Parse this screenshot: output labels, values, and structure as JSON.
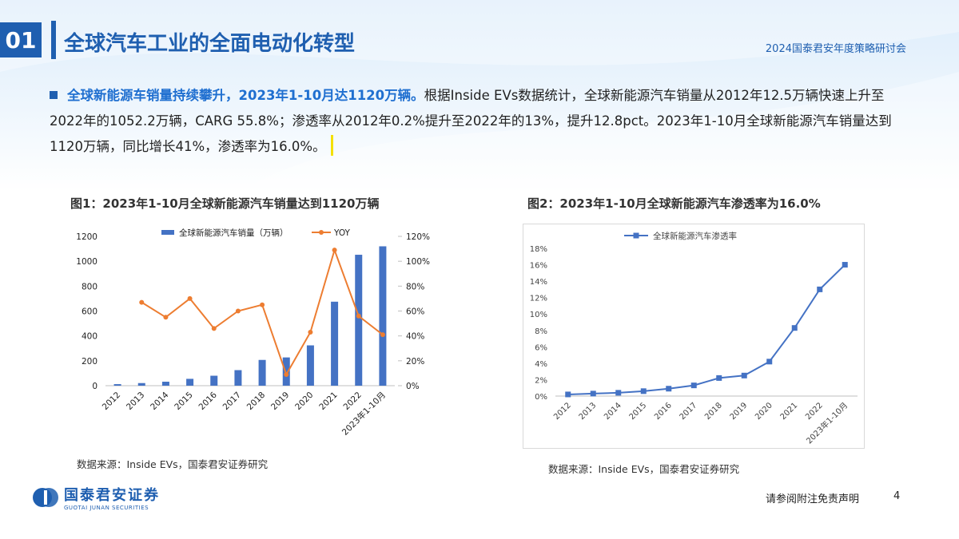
{
  "header": {
    "section_number": "01",
    "title": "全球汽车工业的全面电动化转型",
    "event": "2024国泰君安年度策略研讨会"
  },
  "body": {
    "highlight": "全球新能源车销量持续攀升，2023年1-10月达1120万辆。",
    "text": "根据Inside EVs数据统计，全球新能源汽车销量从2012年12.5万辆快速上升至2022年的1052.2万辆，CARG 55.8%；渗透率从2012年0.2%提升至2022年的13%，提升12.8pct。2023年1-10月全球新能源汽车销量达到1120万辆，同比增长41%，渗透率为16.0%。"
  },
  "figure1": {
    "title": "图1：2023年1-10月全球新能源汽车销量达到1120万辆",
    "source": "数据来源：Inside EVs，国泰君安证券研究"
  },
  "figure2": {
    "title": "图2：2023年1-10月全球新能源汽车渗透率为16.0%",
    "source": "数据来源：Inside EVs，国泰君安证券研究"
  },
  "footer": {
    "logo_main": "国泰君安证券",
    "logo_sub": "GUOTAI JUNAN SECURITIES",
    "disclaimer": "请参阅附注免责声明",
    "page_number": "4"
  },
  "colors": {
    "brand": "#1f5fb0",
    "bar": "#4472c4",
    "line_orange": "#ed7d31",
    "line_blue": "#4472c4"
  },
  "chart_data": [
    {
      "type": "bar",
      "categories": [
        "2012",
        "2013",
        "2014",
        "2015",
        "2016",
        "2017",
        "2018",
        "2019",
        "2020",
        "2021",
        "2022",
        "2023年1-10月"
      ],
      "series": [
        {
          "name": "全球新能源汽车销量（万辆）",
          "type": "bar",
          "axis": "left",
          "values": [
            12.5,
            21,
            32,
            55,
            80,
            125,
            207,
            227,
            324,
            675,
            1052.2,
            1120
          ]
        },
        {
          "name": "YOY",
          "type": "line",
          "axis": "right",
          "values": [
            null,
            0.67,
            0.55,
            0.7,
            0.46,
            0.6,
            0.65,
            0.09,
            0.43,
            1.09,
            0.56,
            0.41
          ]
        }
      ],
      "y_left": {
        "min": 0,
        "max": 1200,
        "ticks": [
          "0",
          "200",
          "400",
          "600",
          "800",
          "1000",
          "1200"
        ]
      },
      "y_right": {
        "min": 0,
        "max": 1.2,
        "ticks": [
          "0%",
          "20%",
          "40%",
          "60%",
          "80%",
          "100%",
          "120%"
        ]
      },
      "legend": "top-center"
    },
    {
      "type": "line",
      "categories": [
        "2012",
        "2013",
        "2014",
        "2015",
        "2016",
        "2017",
        "2018",
        "2019",
        "2020",
        "2021",
        "2022",
        "2023年1-10月"
      ],
      "series": [
        {
          "name": "全球新能源汽车渗透率",
          "values": [
            0.002,
            0.003,
            0.004,
            0.006,
            0.009,
            0.013,
            0.022,
            0.025,
            0.042,
            0.083,
            0.13,
            0.16
          ]
        }
      ],
      "y": {
        "min": 0,
        "max": 0.18,
        "ticks": [
          "0%",
          "2%",
          "4%",
          "6%",
          "8%",
          "10%",
          "12%",
          "14%",
          "16%",
          "18%"
        ]
      },
      "legend": "top-center"
    }
  ]
}
